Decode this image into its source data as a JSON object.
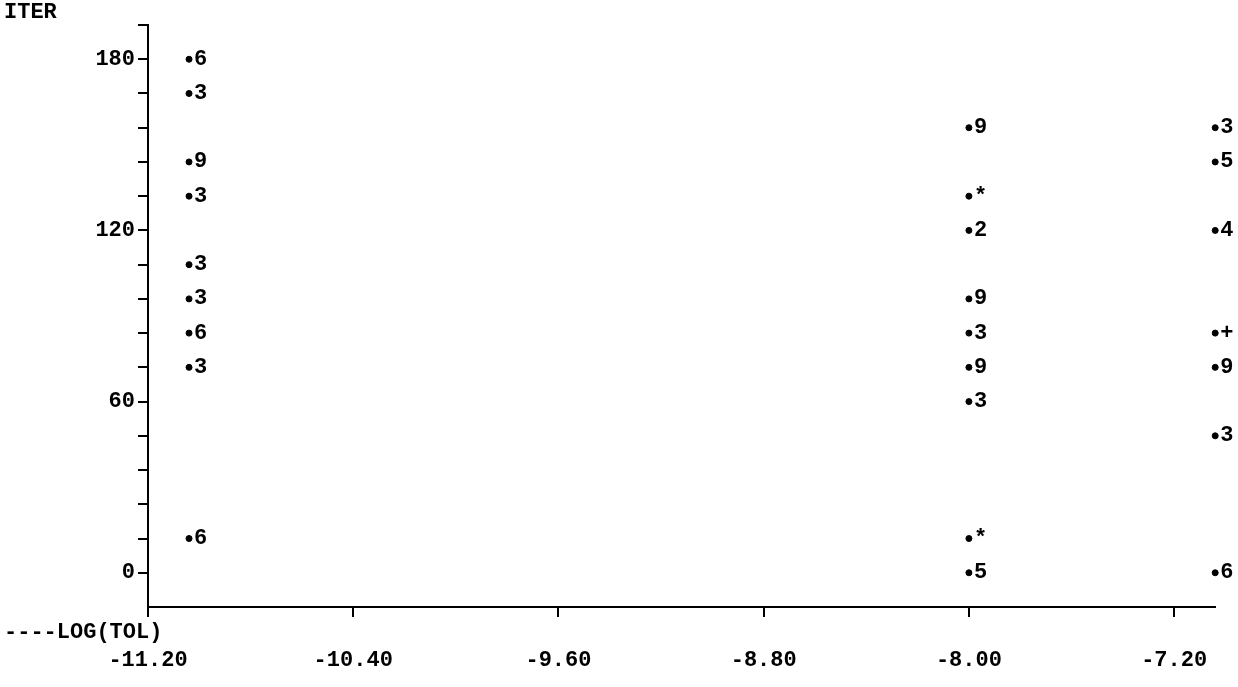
{
  "chart_data": {
    "type": "scatter",
    "ylabel": "ITER",
    "xlabel": "----LOG(TOL)",
    "series": [
      {
        "name": "6",
        "color": "#000000",
        "x": [
          -11.04,
          -11.04,
          -11.04,
          -7.04
        ],
        "values": [
          180,
          84,
          12,
          0
        ]
      },
      {
        "name": "3",
        "color": "#000000",
        "x": [
          -11.04,
          -11.04,
          -11.04,
          -11.04,
          -11.04,
          -8.0,
          -8.0,
          -7.04,
          -7.04
        ],
        "values": [
          168,
          132,
          108,
          96,
          72,
          84,
          60,
          156,
          48
        ]
      },
      {
        "name": "9",
        "color": "#000000",
        "x": [
          -11.04,
          -8.0,
          -8.0,
          -8.0,
          -7.04
        ],
        "values": [
          144,
          156,
          96,
          72,
          72
        ]
      },
      {
        "name": "*",
        "color": "#000000",
        "x": [
          -8.0,
          -8.0
        ],
        "values": [
          132,
          12
        ]
      },
      {
        "name": "2",
        "color": "#000000",
        "x": [
          -8.0
        ],
        "values": [
          120
        ]
      },
      {
        "name": "5",
        "color": "#000000",
        "x": [
          -8.0,
          -7.04
        ],
        "values": [
          0,
          144
        ]
      },
      {
        "name": "4",
        "color": "#000000",
        "x": [
          -7.04
        ],
        "values": [
          120
        ]
      },
      {
        "name": "+",
        "color": "#000000",
        "x": [
          -7.04
        ],
        "values": [
          84
        ]
      }
    ],
    "grid": false,
    "legend": false,
    "marker": "circle",
    "xlim": [
      -11.2,
      -7.04
    ],
    "xticks": [
      {
        "value": -11.2,
        "label": "-11.20"
      },
      {
        "value": -10.4,
        "label": "-10.40"
      },
      {
        "value": -9.6,
        "label": "-9.60"
      },
      {
        "value": -8.8,
        "label": "-8.80"
      },
      {
        "value": -8.0,
        "label": "-8.00"
      },
      {
        "value": -7.2,
        "label": "-7.20"
      }
    ],
    "ylim": [
      -12,
      192
    ],
    "yticks": [
      0,
      {
        "value": 12,
        "label": null
      },
      {
        "value": 24,
        "label": null
      },
      {
        "value": 36,
        "label": null
      },
      {
        "value": 48,
        "label": null
      },
      60,
      {
        "value": 72,
        "label": null
      },
      {
        "value": 84,
        "label": null
      },
      {
        "value": 96,
        "label": null
      },
      {
        "value": 108,
        "label": null
      },
      120,
      {
        "value": 132,
        "label": null
      },
      {
        "value": 144,
        "label": null
      },
      {
        "value": 156,
        "label": null
      },
      {
        "value": 168,
        "label": null
      },
      180,
      {
        "value": 192,
        "label": null
      }
    ]
  }
}
